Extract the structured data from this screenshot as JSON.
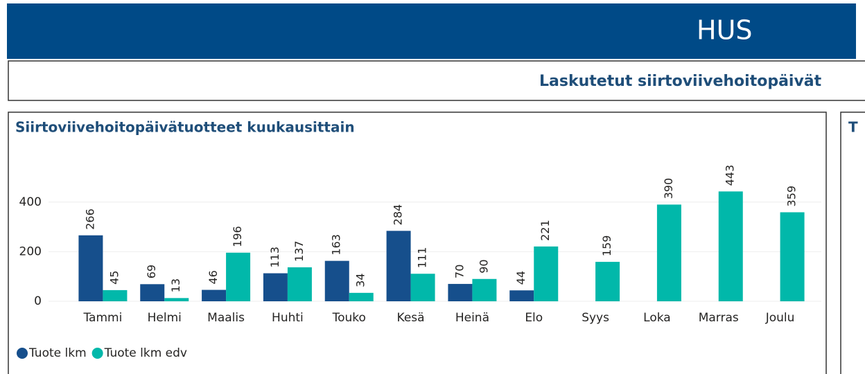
{
  "header": {
    "title": "HUS"
  },
  "banner": {
    "title": "Laskutetut siirtoviivehoitopäivät"
  },
  "right_panel": {
    "title": "T"
  },
  "chart_data": {
    "type": "bar",
    "title": "Siirtoviivehoitopäivätuotteet  kuukausittain",
    "categories": [
      "Tammi",
      "Helmi",
      "Maalis",
      "Huhti",
      "Touko",
      "Kesä",
      "Heinä",
      "Elo",
      "Syys",
      "Loka",
      "Marras",
      "Joulu"
    ],
    "series": [
      {
        "name": "Tuote lkm",
        "color": "#164f8c",
        "values": [
          266,
          69,
          46,
          113,
          163,
          284,
          70,
          44,
          null,
          null,
          null,
          null
        ]
      },
      {
        "name": "Tuote lkm edv",
        "color": "#01b8aa",
        "values": [
          45,
          13,
          196,
          137,
          34,
          111,
          90,
          221,
          159,
          390,
          443,
          359
        ]
      }
    ],
    "ylim": [
      0,
      500
    ],
    "yticks": [
      0,
      200,
      400
    ],
    "grid": true,
    "legend": "bottom-left"
  }
}
